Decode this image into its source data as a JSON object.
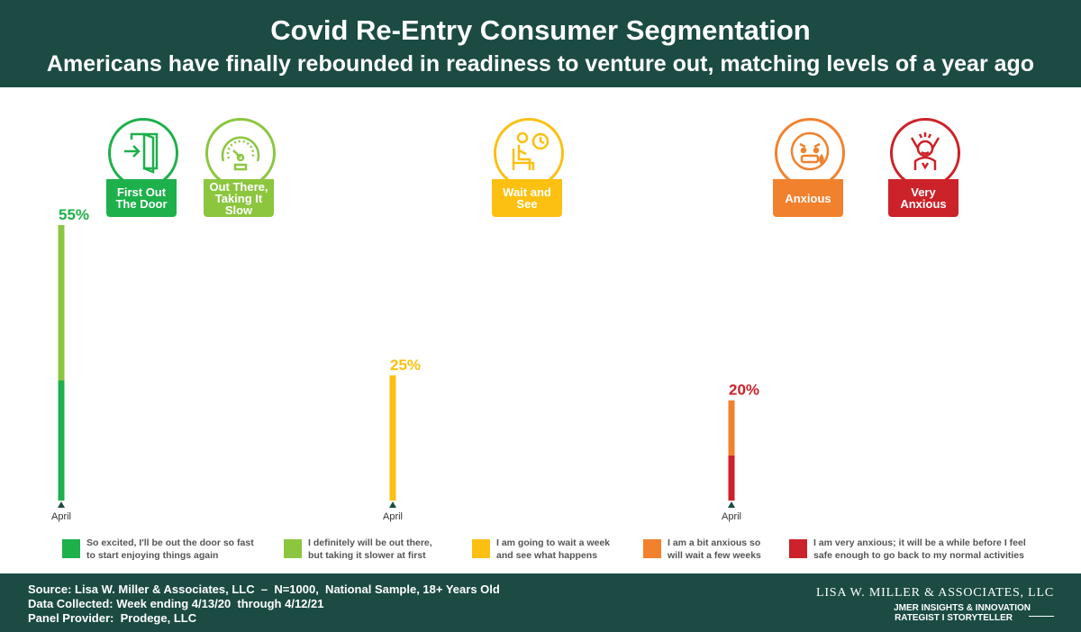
{
  "header": {
    "title": "Covid Re-Entry Consumer Segmentation",
    "subtitle": "Americans have finally rebounded in readiness to venture out, matching levels of a year ago"
  },
  "segments": [
    {
      "label": "First Out\nThe Door",
      "color": "#1db04b",
      "icon": "door-exit-icon"
    },
    {
      "label": "Out There,\nTaking It Slow",
      "color": "#8cc63f",
      "icon": "speedometer-icon"
    },
    {
      "label": "Wait and\nSee",
      "color": "#fcc012",
      "icon": "waiting-person-clock-icon"
    },
    {
      "label": "Anxious",
      "color": "#f2812d",
      "icon": "anxious-face-icon"
    },
    {
      "label": "Very\nAnxious",
      "color": "#cc2229",
      "icon": "screaming-person-icon"
    }
  ],
  "chart_data": {
    "type": "bar",
    "stacked": true,
    "ylim": [
      0,
      60
    ],
    "groups": [
      {
        "total_label": "55%",
        "total": 55,
        "x_label": "April",
        "total_color": "#1db04b",
        "stack": [
          {
            "series": "So excited, I'll be out the door so fast to start enjoying things again",
            "value": 24,
            "color": "#1db04b"
          },
          {
            "series": "I definitely will be out there, but taking it slower at first",
            "value": 31,
            "color": "#8cc63f"
          }
        ]
      },
      {
        "total_label": "25%",
        "total": 25,
        "x_label": "April",
        "total_color": "#fcc012",
        "stack": [
          {
            "series": "I am going to wait a week and see what happens",
            "value": 25,
            "color": "#fcc012"
          }
        ]
      },
      {
        "total_label": "20%",
        "total": 20,
        "x_label": "April",
        "total_color": "#cc2229",
        "stack": [
          {
            "series": "I am very anxious; it will be a while before I feel safe enough to go back to my normal activities",
            "value": 9,
            "color": "#cc2229"
          },
          {
            "series": "I am a bit anxious so will wait a few weeks",
            "value": 11,
            "color": "#f2812d"
          }
        ]
      }
    ]
  },
  "legend": [
    {
      "text": "So excited, I'll be out the door so fast\nto start enjoying things again",
      "color": "#1db04b"
    },
    {
      "text": "I definitely will be out there,\nbut taking it slower at first",
      "color": "#8cc63f"
    },
    {
      "text": "I am going to wait a week\nand see what happens",
      "color": "#fcc012"
    },
    {
      "text": "I am a bit anxious so\nwill wait a few weeks",
      "color": "#f2812d"
    },
    {
      "text": "I am very anxious; it will be a while before I feel\nsafe enough to go back to my normal activities",
      "color": "#cc2229"
    }
  ],
  "footer": {
    "source": "Source: Lisa W. Miller & Associates, LLC  –  N=1000,  National Sample, 18+ Years Old",
    "collected": "Data Collected: Week ending 4/13/20  through 4/12/21",
    "panel": "Panel Provider:  Prodege, LLC",
    "brand_name": "LISA W. MILLER & ASSOCIATES, LLC",
    "brand_line2": "JMER INSIGHTS & INNOVATION",
    "brand_line3": "RATEGIST I STORYTELLER"
  }
}
